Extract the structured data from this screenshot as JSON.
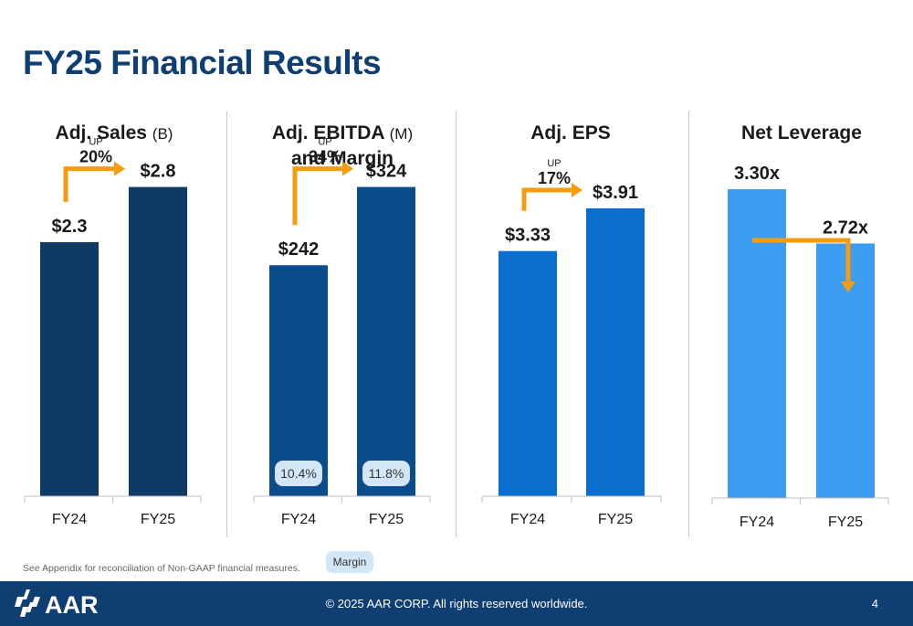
{
  "page_title": "FY25 Financial Results",
  "footnote": "See Appendix for reconciliation of Non-GAAP financial measures.",
  "margin_legend": "Margin",
  "footer": {
    "logo_text": "AAR",
    "copyright": "© 2025 AAR CORP. All rights reserved worldwide.",
    "page_number": "4"
  },
  "colors": {
    "title": "#0f3e73",
    "arrow": "#f59d0f",
    "footer_bg": "#0f3e73",
    "margin_pill": "#d3e6f7"
  },
  "chart_data": [
    {
      "type": "bar",
      "title": "Adj. Sales",
      "unit": "(B)",
      "categories": [
        "FY24",
        "FY25"
      ],
      "values": [
        2.3,
        2.8
      ],
      "labels": [
        "$2.3",
        "$2.8"
      ],
      "color": "#0f3a63",
      "ylim": [
        0,
        3.5
      ],
      "change": {
        "direction": "UP",
        "value": "20%"
      }
    },
    {
      "type": "bar",
      "title": "Adj. EBITDA",
      "unit": "(M)",
      "subtitle": "and Margin",
      "categories": [
        "FY24",
        "FY25"
      ],
      "values": [
        242,
        324
      ],
      "labels": [
        "$242",
        "$324"
      ],
      "margins": [
        "10.4%",
        "11.8%"
      ],
      "color": "#0b4d8c",
      "ylim": [
        0,
        405
      ],
      "change": {
        "direction": "UP",
        "value": "34%"
      }
    },
    {
      "type": "bar",
      "title": "Adj. EPS",
      "categories": [
        "FY24",
        "FY25"
      ],
      "values": [
        3.33,
        3.91
      ],
      "labels": [
        "$3.33",
        "$3.91"
      ],
      "color": "#0a6ecc",
      "ylim": [
        0,
        5.25
      ],
      "change": {
        "direction": "UP",
        "value": "17%"
      }
    },
    {
      "type": "bar",
      "title": "Net Leverage",
      "categories": [
        "FY24",
        "FY25"
      ],
      "values": [
        3.3,
        2.72
      ],
      "labels": [
        "3.30x",
        "2.72x"
      ],
      "color": "#3c9df2",
      "ylim": [
        0,
        4.15
      ]
    }
  ]
}
